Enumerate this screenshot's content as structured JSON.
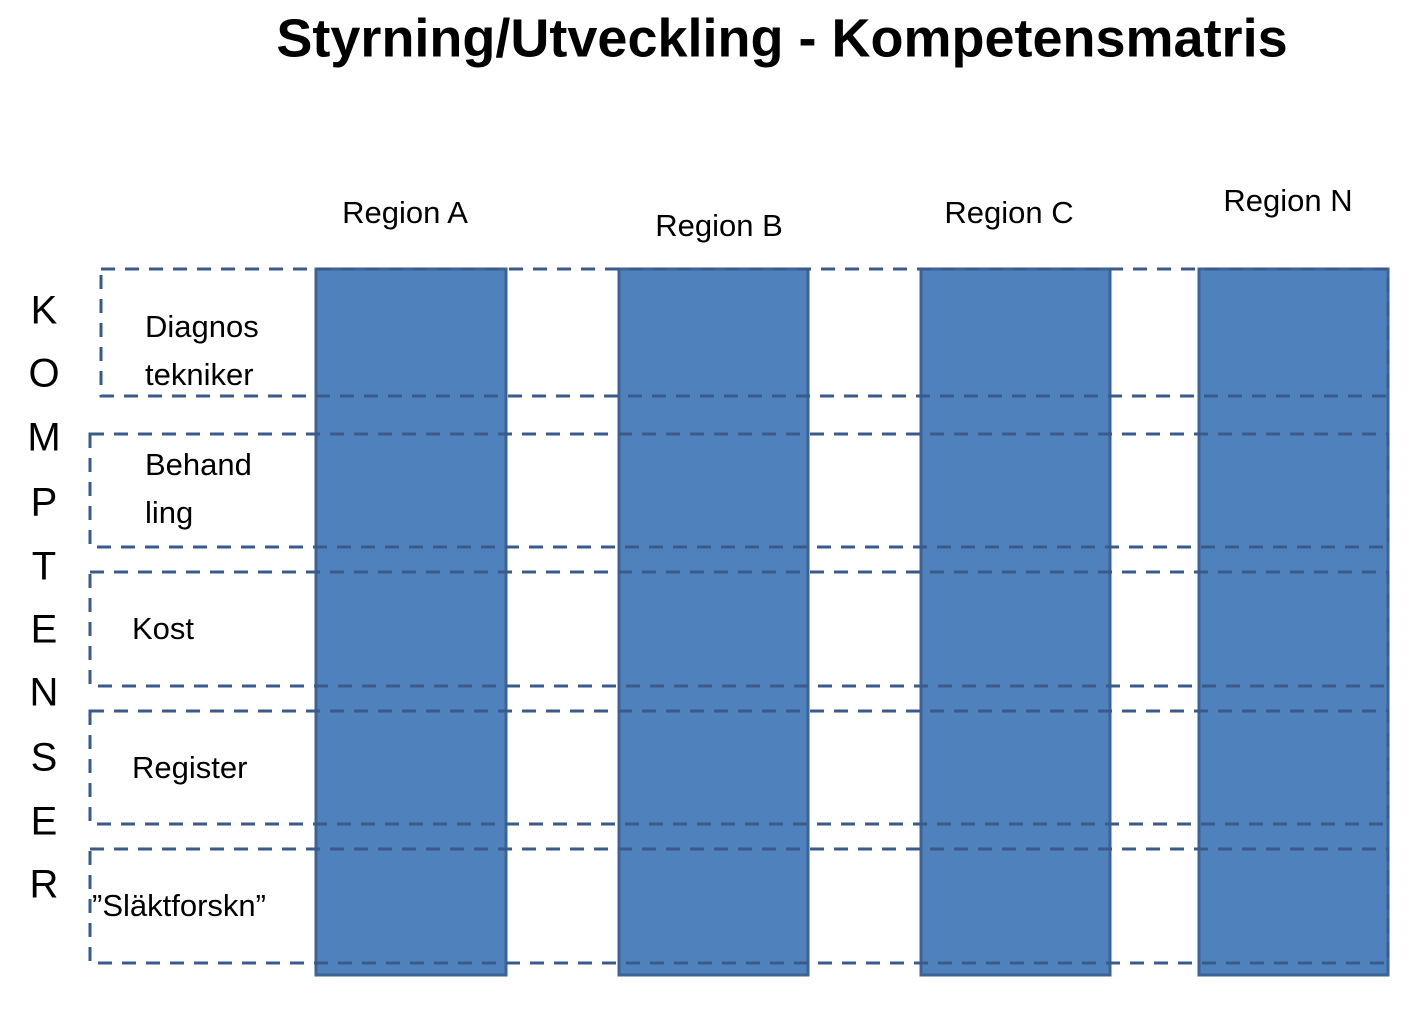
{
  "title": "Styrning/Utveckling - Kompetensmatris",
  "regions": [
    "Region A",
    "Region B",
    "Region C",
    "Region N"
  ],
  "side_label": [
    "K",
    "O",
    "M",
    "P",
    "T",
    "E",
    "N",
    "S",
    "E",
    "R"
  ],
  "competencies": [
    {
      "lines": [
        "Diagnos",
        "tekniker"
      ]
    },
    {
      "lines": [
        "Behand",
        "ling"
      ]
    },
    {
      "lines": [
        "Kost"
      ]
    },
    {
      "lines": [
        "Register"
      ]
    },
    {
      "lines": [
        "”Släktforskn”"
      ]
    }
  ]
}
